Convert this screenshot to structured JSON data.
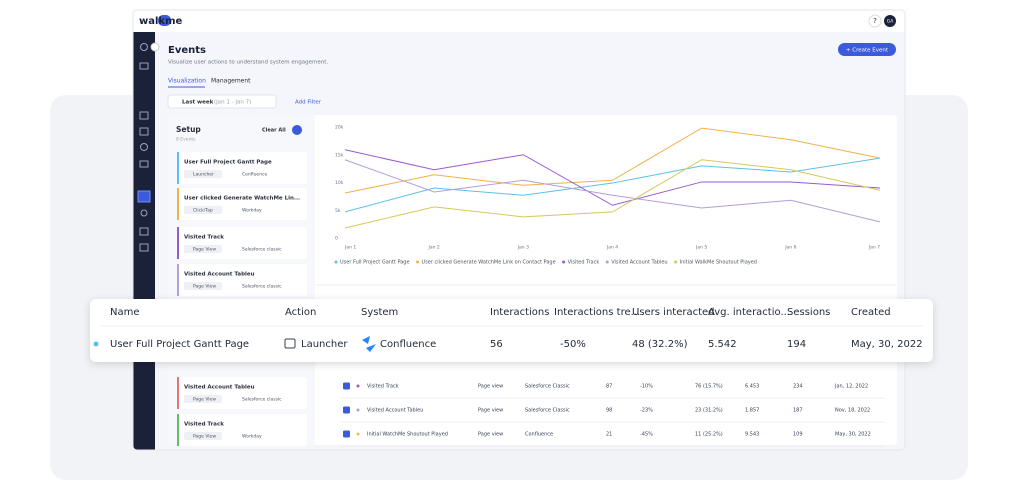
{
  "topbar": {
    "logo": "walkme",
    "help": "?",
    "avatar": "GA"
  },
  "header": {
    "title": "Events",
    "subtitle": "Visualize user actions to understand system engagement.",
    "tabs": [
      "Visualization",
      "Management"
    ],
    "date_filter": "Last week",
    "date_range": "(Jan 1 - Jan 7)",
    "add_filter": "Add Filter",
    "create_button": "+ Create Event"
  },
  "setup": {
    "title": "Setup",
    "count": "8 Events",
    "clear": "Clear All",
    "cards": [
      {
        "name": "User Full Project Gantt Page",
        "action": "Launcher",
        "system": "Confluence",
        "color": "#5bc0eb"
      },
      {
        "name": "User clicked Generate WatchMe Lin...",
        "action": "Click/Tap",
        "system": "Workday",
        "color": "#f0b24a"
      },
      {
        "name": "Visited Track",
        "action": "Page View",
        "system": "Salesforce classic",
        "color": "#9b59d0"
      },
      {
        "name": "Visited Account Tableu",
        "action": "Page View",
        "system": "Salesforce classic",
        "color": "#b39ddb"
      },
      {
        "name": "Visited Account Tableu",
        "action": "Page View",
        "system": "Salesforce classic",
        "color": "#e57373"
      },
      {
        "name": "Visited Track",
        "action": "Page View",
        "system": "Workday",
        "color": "#66bb6a"
      }
    ]
  },
  "chart_data": {
    "type": "line",
    "categories": [
      "Jan 1",
      "Jan 2",
      "Jan 3",
      "Jan 4",
      "Jan 5",
      "Jan 6",
      "Jan 7"
    ],
    "ylim": [
      0,
      20000
    ],
    "yticks": [
      0,
      {
        "value": 5000,
        "label": "5k"
      },
      {
        "value": 10000,
        "label": "10k"
      },
      {
        "value": 15000,
        "label": "15k"
      },
      {
        "value": 20000,
        "label": "20k"
      }
    ],
    "series": [
      {
        "name": "User Full Project Gantt Page",
        "color": "#5bc0eb",
        "values": [
          4700,
          9000,
          7700,
          9900,
          13000,
          11900,
          14400
        ]
      },
      {
        "name": "User clicked Generate WatchMe Link on Contact Page",
        "color": "#f0b24a",
        "values": [
          8100,
          11400,
          9500,
          10400,
          19800,
          17700,
          14400
        ]
      },
      {
        "name": "Visited Track",
        "color": "#9b59d0",
        "values": [
          15900,
          12300,
          15000,
          5900,
          10100,
          10100,
          9000
        ]
      },
      {
        "name": "Visited Account Tableu",
        "color": "#b39ddb",
        "values": [
          14100,
          8300,
          10400,
          7700,
          5400,
          6800,
          2900
        ]
      },
      {
        "name": "Initial WalkMe Shoutout Played",
        "color": "#d4c95a",
        "values": [
          1800,
          5600,
          3800,
          4700,
          14100,
          12300,
          8600
        ]
      }
    ]
  },
  "table": {
    "rows": [
      {
        "color": "#9b59d0",
        "cells": [
          "Visited Track",
          "Page view",
          "Salesforce Classic",
          "87",
          "-10%",
          "76 (15.7%)",
          "6.453",
          "234",
          "Jan, 12, 2022"
        ]
      },
      {
        "color": "#b39ddb",
        "cells": [
          "Visited Account Tableu",
          "Page view",
          "Salesforce Classic",
          "98",
          "-23%",
          "23 (31.2%)",
          "1.857",
          "187",
          "Nov, 18, 2022"
        ]
      },
      {
        "color": "#d4c95a",
        "cells": [
          "Initial WatchMe Shoutout Played",
          "Page view",
          "Confluence",
          "21",
          "-45%",
          "11 (25.2%)",
          "9.543",
          "109",
          "May, 30, 2022"
        ]
      }
    ]
  },
  "overlay": {
    "columns": [
      "Name",
      "Action",
      "System",
      "Interactions",
      "Interactions tre...",
      "Users interacted",
      "Avg. interactio...",
      "Sessions",
      "Created"
    ],
    "row": [
      "User Full Project Gantt Page",
      "Launcher",
      "Confluence",
      "56",
      "-50%",
      "48 (32.2%)",
      "5.542",
      "194",
      "May, 30, 2022"
    ]
  }
}
